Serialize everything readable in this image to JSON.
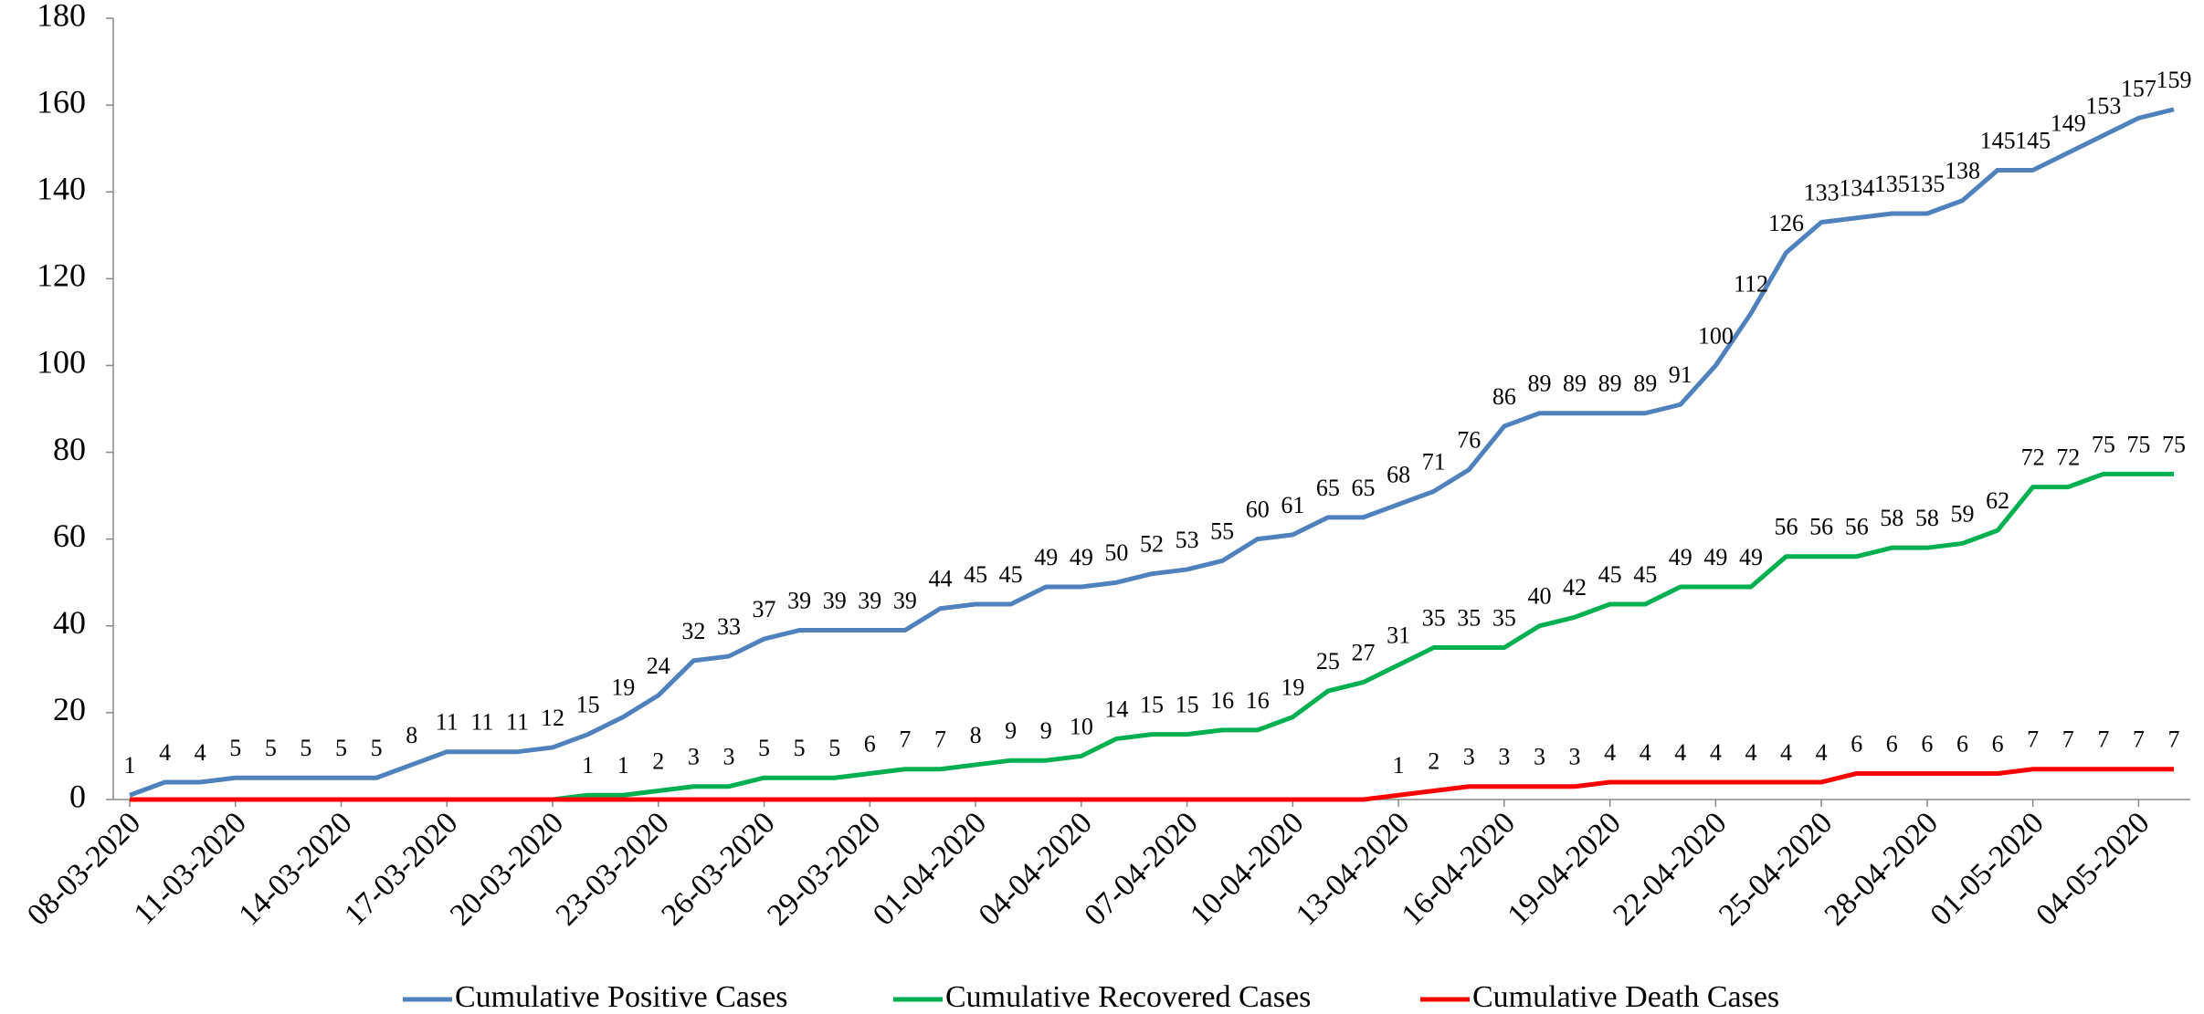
{
  "chart_data": {
    "type": "line",
    "categories": [
      "08-03-2020",
      null,
      null,
      "11-03-2020",
      null,
      null,
      "14-03-2020",
      null,
      null,
      "17-03-2020",
      null,
      null,
      "20-03-2020",
      null,
      null,
      "23-03-2020",
      null,
      null,
      "26-03-2020",
      null,
      null,
      "29-03-2020",
      null,
      null,
      "01-04-2020",
      null,
      null,
      "04-04-2020",
      null,
      null,
      "07-04-2020",
      null,
      null,
      "10-04-2020",
      null,
      null,
      "13-04-2020",
      null,
      null,
      "16-04-2020",
      null,
      null,
      "19-04-2020",
      null,
      null,
      "22-04-2020",
      null,
      null,
      "25-04-2020",
      null,
      null,
      "28-04-2020",
      null,
      null,
      "01-05-2020",
      null,
      null,
      "04-05-2020",
      null
    ],
    "series": [
      {
        "name": "Cumulative Positive Cases",
        "color": "#4f81bd",
        "values": [
          1,
          4,
          4,
          5,
          5,
          5,
          5,
          5,
          8,
          11,
          11,
          11,
          12,
          15,
          19,
          24,
          32,
          33,
          37,
          39,
          39,
          39,
          39,
          44,
          45,
          45,
          49,
          49,
          50,
          52,
          53,
          55,
          60,
          61,
          65,
          65,
          68,
          71,
          76,
          86,
          89,
          89,
          89,
          89,
          91,
          100,
          112,
          126,
          133,
          134,
          135,
          135,
          138,
          145,
          145,
          149,
          153,
          157,
          159
        ]
      },
      {
        "name": "Cumulative Recovered Cases",
        "color": "#00b050",
        "values": [
          0,
          0,
          0,
          0,
          0,
          0,
          0,
          0,
          0,
          0,
          0,
          0,
          0,
          1,
          1,
          2,
          3,
          3,
          5,
          5,
          5,
          6,
          7,
          7,
          8,
          9,
          9,
          10,
          14,
          15,
          15,
          16,
          16,
          19,
          25,
          27,
          31,
          35,
          35,
          35,
          40,
          42,
          45,
          45,
          49,
          49,
          49,
          56,
          56,
          56,
          58,
          58,
          59,
          62,
          72,
          72,
          75,
          75,
          75
        ]
      },
      {
        "name": "Cumulative Death Cases",
        "color": "#ff0000",
        "values": [
          0,
          0,
          0,
          0,
          0,
          0,
          0,
          0,
          0,
          0,
          0,
          0,
          0,
          0,
          0,
          0,
          0,
          0,
          0,
          0,
          0,
          0,
          0,
          0,
          0,
          0,
          0,
          0,
          0,
          0,
          0,
          0,
          0,
          0,
          0,
          0,
          1,
          2,
          3,
          3,
          3,
          3,
          4,
          4,
          4,
          4,
          4,
          4,
          4,
          6,
          6,
          6,
          6,
          6,
          7,
          7,
          7,
          7,
          7
        ]
      }
    ],
    "ylim": [
      0,
      180
    ],
    "yticks": [
      0,
      20,
      40,
      60,
      80,
      100,
      120,
      140,
      160,
      180
    ],
    "grid": false,
    "legend": "bottom"
  }
}
